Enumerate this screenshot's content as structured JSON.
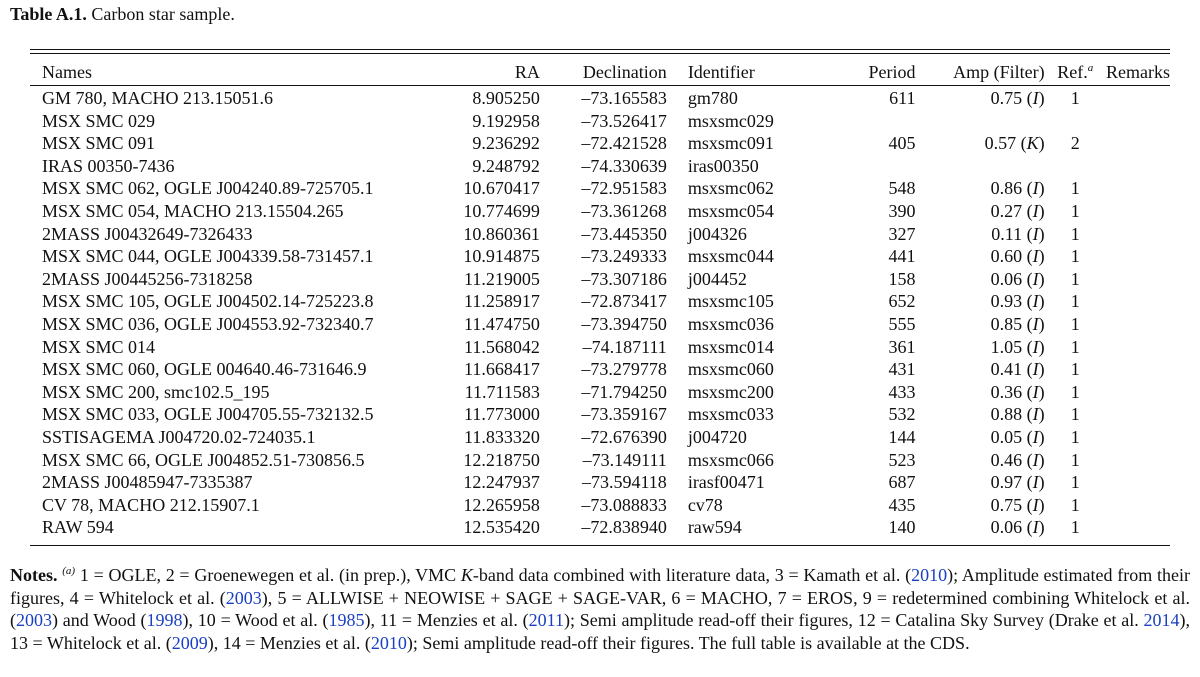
{
  "caption": {
    "label": "Table A.1.",
    "text": "Carbon star sample."
  },
  "table": {
    "headers": {
      "names": "Names",
      "ra": "RA",
      "declination": "Declination",
      "identifier": "Identifier",
      "period": "Period",
      "amp": "Amp (Filter)",
      "ref": "Ref.",
      "ref_sup": "a",
      "remarks": "Remarks"
    },
    "rows": [
      {
        "name": "GM 780, MACHO 213.15051.6",
        "ra": "8.905250",
        "dec": "–73.165583",
        "id": "gm780",
        "period": "611",
        "amp": "0.75",
        "filter": "I",
        "ref": "1",
        "remarks": ""
      },
      {
        "name": "MSX SMC 029",
        "ra": "9.192958",
        "dec": "–73.526417",
        "id": "msxsmc029",
        "period": "",
        "amp": "",
        "filter": "",
        "ref": "",
        "remarks": ""
      },
      {
        "name": "MSX SMC 091",
        "ra": "9.236292",
        "dec": "–72.421528",
        "id": "msxsmc091",
        "period": "405",
        "amp": "0.57",
        "filter": "K",
        "ref": "2",
        "remarks": ""
      },
      {
        "name": "IRAS 00350-7436",
        "ra": "9.248792",
        "dec": "–74.330639",
        "id": "iras00350",
        "period": "",
        "amp": "",
        "filter": "",
        "ref": "",
        "remarks": ""
      },
      {
        "name": "MSX SMC 062, OGLE J004240.89-725705.1",
        "ra": "10.670417",
        "dec": "–72.951583",
        "id": "msxsmc062",
        "period": "548",
        "amp": "0.86",
        "filter": "I",
        "ref": "1",
        "remarks": ""
      },
      {
        "name": "MSX SMC 054, MACHO 213.15504.265",
        "ra": "10.774699",
        "dec": "–73.361268",
        "id": "msxsmc054",
        "period": "390",
        "amp": "0.27",
        "filter": "I",
        "ref": "1",
        "remarks": ""
      },
      {
        "name": "2MASS J00432649-7326433",
        "ra": "10.860361",
        "dec": "–73.445350",
        "id": "j004326",
        "period": "327",
        "amp": "0.11",
        "filter": "I",
        "ref": "1",
        "remarks": ""
      },
      {
        "name": "MSX SMC 044, OGLE J004339.58-731457.1",
        "ra": "10.914875",
        "dec": "–73.249333",
        "id": "msxsmc044",
        "period": "441",
        "amp": "0.60",
        "filter": "I",
        "ref": "1",
        "remarks": ""
      },
      {
        "name": "2MASS J00445256-7318258",
        "ra": "11.219005",
        "dec": "–73.307186",
        "id": "j004452",
        "period": "158",
        "amp": "0.06",
        "filter": "I",
        "ref": "1",
        "remarks": ""
      },
      {
        "name": "MSX SMC 105, OGLE J004502.14-725223.8",
        "ra": "11.258917",
        "dec": "–72.873417",
        "id": "msxsmc105",
        "period": "652",
        "amp": "0.93",
        "filter": "I",
        "ref": "1",
        "remarks": ""
      },
      {
        "name": "MSX SMC 036, OGLE J004553.92-732340.7",
        "ra": "11.474750",
        "dec": "–73.394750",
        "id": "msxsmc036",
        "period": "555",
        "amp": "0.85",
        "filter": "I",
        "ref": "1",
        "remarks": ""
      },
      {
        "name": "MSX SMC 014",
        "ra": "11.568042",
        "dec": "–74.187111",
        "id": "msxsmc014",
        "period": "361",
        "amp": "1.05",
        "filter": "I",
        "ref": "1",
        "remarks": ""
      },
      {
        "name": "MSX SMC 060, OGLE 004640.46-731646.9",
        "ra": "11.668417",
        "dec": "–73.279778",
        "id": "msxsmc060",
        "period": "431",
        "amp": "0.41",
        "filter": "I",
        "ref": "1",
        "remarks": ""
      },
      {
        "name": "MSX SMC 200, smc102.5_195",
        "ra": "11.711583",
        "dec": "–71.794250",
        "id": "msxsmc200",
        "period": "433",
        "amp": "0.36",
        "filter": "I",
        "ref": "1",
        "remarks": ""
      },
      {
        "name": "MSX SMC 033, OGLE J004705.55-732132.5",
        "ra": "11.773000",
        "dec": "–73.359167",
        "id": "msxsmc033",
        "period": "532",
        "amp": "0.88",
        "filter": "I",
        "ref": "1",
        "remarks": ""
      },
      {
        "name": "SSTISAGEMA J004720.02-724035.1",
        "ra": "11.833320",
        "dec": "–72.676390",
        "id": "j004720",
        "period": "144",
        "amp": "0.05",
        "filter": "I",
        "ref": "1",
        "remarks": ""
      },
      {
        "name": "MSX SMC 66, OGLE J004852.51-730856.5",
        "ra": "12.218750",
        "dec": "–73.149111",
        "id": "msxsmc066",
        "period": "523",
        "amp": "0.46",
        "filter": "I",
        "ref": "1",
        "remarks": ""
      },
      {
        "name": "2MASS J00485947-7335387",
        "ra": "12.247937",
        "dec": "–73.594118",
        "id": "irasf00471",
        "period": "687",
        "amp": "0.97",
        "filter": "I",
        "ref": "1",
        "remarks": ""
      },
      {
        "name": "CV 78, MACHO 212.15907.1",
        "ra": "12.265958",
        "dec": "–73.088833",
        "id": "cv78",
        "period": "435",
        "amp": "0.75",
        "filter": "I",
        "ref": "1",
        "remarks": ""
      },
      {
        "name": "RAW 594",
        "ra": "12.535420",
        "dec": "–72.838940",
        "id": "raw594",
        "period": "140",
        "amp": "0.06",
        "filter": "I",
        "ref": "1",
        "remarks": ""
      }
    ]
  },
  "notes": {
    "label": "Notes.",
    "marker": "(a)",
    "parts": [
      {
        "text": " 1 = OGLE, 2 = Groenewegen et al. (in prep.), VMC ",
        "link": false
      },
      {
        "text": "K",
        "italic": true
      },
      {
        "text": "-band data combined with literature data, 3 = Kamath et al. (",
        "link": false
      },
      {
        "text": "2010",
        "link": true
      },
      {
        "text": "); Amplitude estimated from their figures, 4 = Whitelock et al. (",
        "link": false
      },
      {
        "text": "2003",
        "link": true
      },
      {
        "text": "), 5 = ALLWISE + NEOWISE + SAGE + SAGE-VAR, 6 = MACHO, 7 = EROS, 9 = redetermined combining Whitelock et al. (",
        "link": false
      },
      {
        "text": "2003",
        "link": true
      },
      {
        "text": ") and Wood (",
        "link": false
      },
      {
        "text": "1998",
        "link": true
      },
      {
        "text": "), 10 = Wood et al. (",
        "link": false
      },
      {
        "text": "1985",
        "link": true
      },
      {
        "text": "), 11 = Menzies  et al. (",
        "link": false
      },
      {
        "text": "2011",
        "link": true
      },
      {
        "text": "); Semi amplitude read-off their figures, 12 = Catalina Sky Survey (Drake et al. ",
        "link": false
      },
      {
        "text": "2014",
        "link": true
      },
      {
        "text": "), 13 = Whitelock et al. (",
        "link": false
      },
      {
        "text": "2009",
        "link": true
      },
      {
        "text": "), 14 = Menzies et al. (",
        "link": false
      },
      {
        "text": "2010",
        "link": true
      },
      {
        "text": "); Semi amplitude read-off their figures. The full table is available at the CDS.",
        "link": false
      }
    ]
  },
  "colors": {
    "text": "#111111",
    "link": "#1a3fc4"
  }
}
